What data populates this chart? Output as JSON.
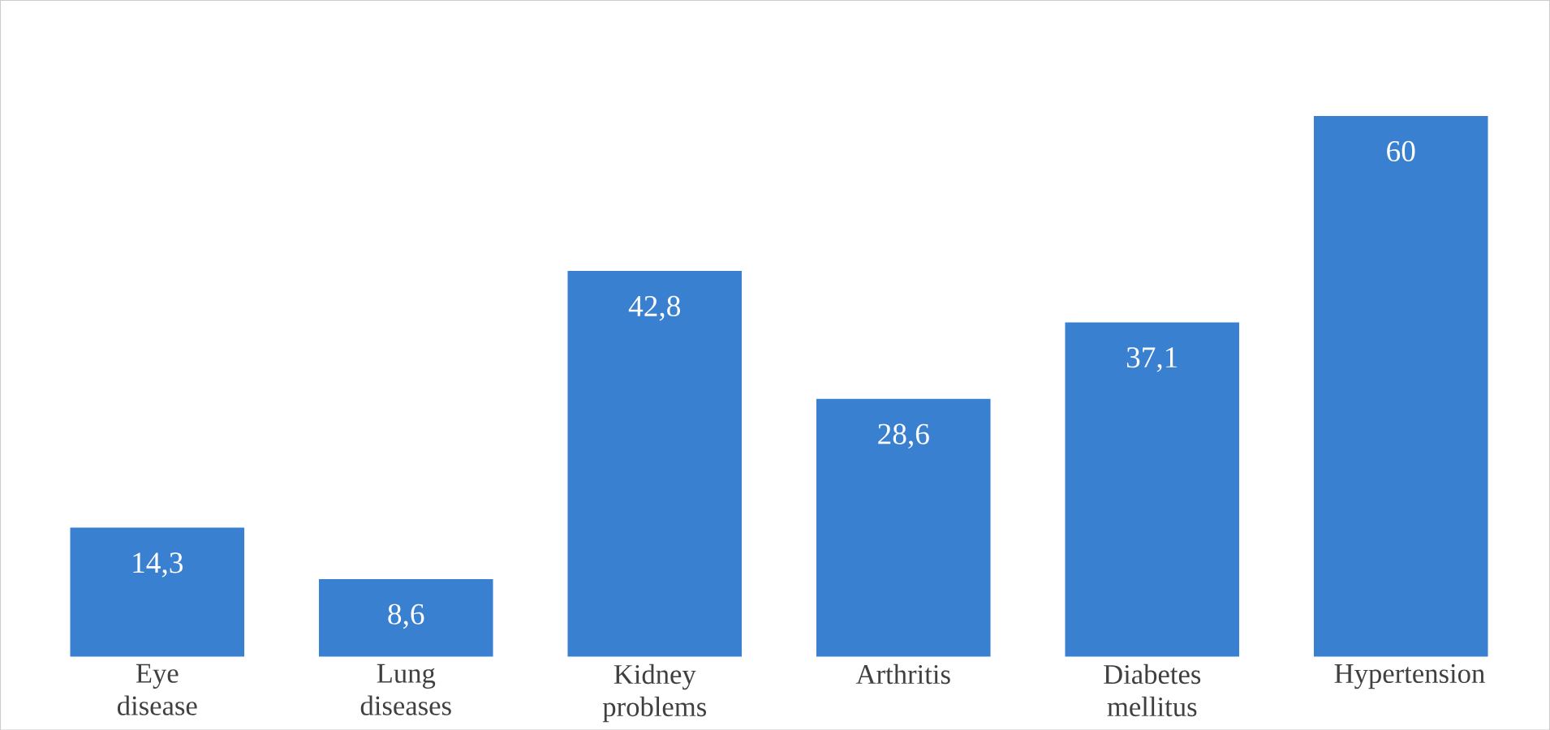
{
  "chart_data": {
    "type": "bar",
    "categories": [
      "Eye disease",
      "Lung diseases",
      "Kidney problems",
      "Arthritis",
      "Diabetes mellitus",
      "Hypertension"
    ],
    "values": [
      14.3,
      8.6,
      42.8,
      28.6,
      37.1,
      60
    ],
    "value_labels": [
      "14,3",
      "8,6",
      "42,8",
      "28,6",
      "37,1",
      "60"
    ],
    "color": "#3a80d0"
  }
}
